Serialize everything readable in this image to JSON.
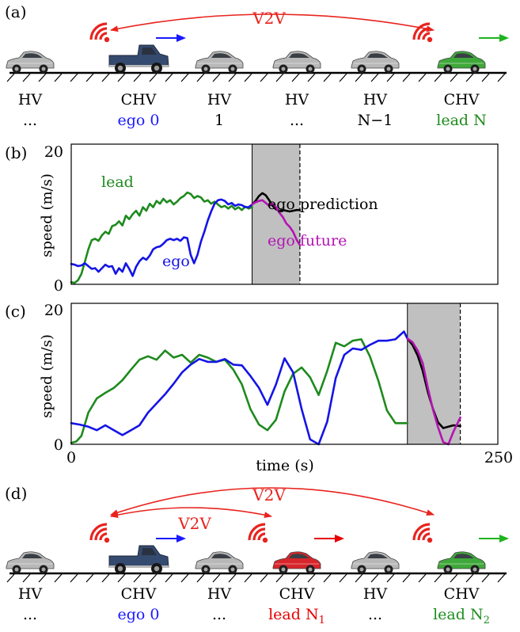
{
  "panel_a": {
    "tag": "(a)",
    "v2v": "V2V",
    "vehicles": [
      {
        "type": "HV",
        "id": "...",
        "type_color": "#000000",
        "id_color": "#000000",
        "kind": "sedan",
        "body": "#b8b8b8",
        "arrow": ""
      },
      {
        "type": "CHV",
        "id": "ego 0",
        "type_color": "#000000",
        "id_color": "#1a1aff",
        "kind": "pickup",
        "body": "#344a6e",
        "arrow": "#1a1aff"
      },
      {
        "type": "HV",
        "id": "1",
        "type_color": "#000000",
        "id_color": "#000000",
        "kind": "sedan",
        "body": "#b8b8b8",
        "arrow": ""
      },
      {
        "type": "HV",
        "id": "...",
        "type_color": "#000000",
        "id_color": "#000000",
        "kind": "sedan",
        "body": "#b8b8b8",
        "arrow": ""
      },
      {
        "type": "HV",
        "id": "N−1",
        "type_color": "#000000",
        "id_color": "#000000",
        "kind": "sedan",
        "body": "#b8b8b8",
        "arrow": ""
      },
      {
        "type": "CHV",
        "id": "lead N",
        "type_color": "#000000",
        "id_color": "#1e8c1e",
        "kind": "sedan",
        "body": "#3fa83a",
        "arrow": "#1eb41e"
      }
    ]
  },
  "panel_d": {
    "tag": "(d)",
    "v2v_outer": "V2V",
    "v2v_inner": "V2V",
    "vehicles": [
      {
        "type": "HV",
        "id": "...",
        "sub": "",
        "type_color": "#000000",
        "id_color": "#000000",
        "kind": "sedan",
        "body": "#b8b8b8",
        "arrow": ""
      },
      {
        "type": "CHV",
        "id": "ego 0",
        "sub": "",
        "type_color": "#000000",
        "id_color": "#1a1aff",
        "kind": "pickup",
        "body": "#344a6e",
        "arrow": "#1a1aff"
      },
      {
        "type": "HV",
        "id": "...",
        "sub": "",
        "type_color": "#000000",
        "id_color": "#000000",
        "kind": "sedan",
        "body": "#b8b8b8",
        "arrow": ""
      },
      {
        "type": "CHV",
        "id": "lead N",
        "sub": "1",
        "type_color": "#000000",
        "id_color": "#e60000",
        "kind": "sedan",
        "body": "#d7262b",
        "arrow": "#e60000"
      },
      {
        "type": "HV",
        "id": "...",
        "sub": "",
        "type_color": "#000000",
        "id_color": "#000000",
        "kind": "sedan",
        "body": "#b8b8b8",
        "arrow": ""
      },
      {
        "type": "CHV",
        "id": "lead N",
        "sub": "2",
        "type_color": "#000000",
        "id_color": "#1e8c1e",
        "kind": "sedan",
        "body": "#3fa83a",
        "arrow": "#1eb41e"
      }
    ]
  },
  "colors": {
    "v2v": "#e8231e",
    "ego": "#1414e6",
    "lead": "#1e8a1e",
    "prediction": "#000000",
    "future": "#b414b4",
    "window": "#c0c0c0"
  },
  "chart_data": [
    {
      "panel": "(b)",
      "type": "line",
      "ylabel": "speed (m/s)",
      "xlim": [
        0,
        125
      ],
      "ylim": [
        0,
        20
      ],
      "y_ticks": [
        "0",
        "20"
      ],
      "shaded_window": [
        53,
        67
      ],
      "annotations": {
        "lead": "lead",
        "ego": "ego",
        "prediction": "ego prediction",
        "future": "ego future"
      },
      "series": [
        {
          "name": "lead",
          "key": "lead",
          "x": [
            0,
            1,
            2,
            3,
            4,
            5,
            6,
            7,
            8,
            9,
            10,
            11,
            12,
            13,
            14,
            15,
            16,
            17,
            18,
            19,
            20,
            21,
            22,
            23,
            24,
            25,
            26,
            27,
            28,
            29,
            30,
            31,
            32,
            33,
            34,
            35,
            36,
            37,
            38,
            39,
            40,
            41,
            42,
            43,
            44,
            45,
            46,
            47,
            48,
            49,
            50,
            51,
            52,
            53
          ],
          "y": [
            0.3,
            0.2,
            0.6,
            1.5,
            3.2,
            5.0,
            6.3,
            6.5,
            6.2,
            7.0,
            7.5,
            7.2,
            8.3,
            8.5,
            9.0,
            8.4,
            9.8,
            9.3,
            10.0,
            10.5,
            9.8,
            11.0,
            10.5,
            11.5,
            11.0,
            11.9,
            11.5,
            12.2,
            11.7,
            12.0,
            11.4,
            11.8,
            12.3,
            12.6,
            13.1,
            12.9,
            12.3,
            12.6,
            12.4,
            11.8,
            12.0,
            11.5,
            11.8,
            11.4,
            11.0,
            11.2,
            10.8,
            11.2,
            10.7,
            11.0,
            10.6,
            11.1,
            10.8,
            11.0
          ]
        },
        {
          "name": "ego",
          "key": "ego",
          "x": [
            0,
            1,
            2,
            3,
            4,
            5,
            6,
            7,
            8,
            9,
            10,
            11,
            12,
            13,
            14,
            15,
            16,
            17,
            18,
            19,
            20,
            21,
            22,
            23,
            24,
            25,
            26,
            27,
            28,
            29,
            30,
            31,
            32,
            33,
            34,
            35,
            36,
            37,
            38,
            39,
            40,
            41,
            42,
            43,
            44,
            45,
            46,
            47,
            48,
            49,
            50,
            51,
            52,
            53
          ],
          "y": [
            2.9,
            2.8,
            2.6,
            2.7,
            3.0,
            2.6,
            2.2,
            2.3,
            1.8,
            2.3,
            2.8,
            2.5,
            2.6,
            1.5,
            2.3,
            1.8,
            3.0,
            2.2,
            1.2,
            2.5,
            3.3,
            3.8,
            3.5,
            4.1,
            5.0,
            5.3,
            5.4,
            5.8,
            6.3,
            6.5,
            6.3,
            6.5,
            6.2,
            6.7,
            6.6,
            4.2,
            3.0,
            4.2,
            6.1,
            7.5,
            9.1,
            10.4,
            11.5,
            12.0,
            12.1,
            11.9,
            11.4,
            11.6,
            11.2,
            11.4,
            11.3,
            11.0,
            11.0,
            11.4
          ]
        },
        {
          "name": "ego prediction",
          "key": "prediction",
          "x": [
            53,
            54,
            55,
            56,
            57,
            58,
            59,
            60,
            61,
            62,
            63,
            64,
            65,
            66,
            67
          ],
          "y": [
            11.4,
            11.9,
            12.6,
            13.0,
            12.7,
            12.0,
            11.2,
            10.7,
            10.5,
            10.6,
            10.5,
            10.4,
            10.5,
            10.6,
            10.6
          ]
        },
        {
          "name": "ego future",
          "key": "future",
          "x": [
            53,
            54,
            55,
            56,
            57,
            58,
            59,
            60,
            61,
            62,
            63,
            64,
            65,
            66,
            67
          ],
          "y": [
            11.4,
            11.7,
            11.9,
            12.0,
            11.6,
            11.2,
            11.5,
            11.0,
            10.2,
            9.6,
            8.7,
            8.2,
            7.5,
            6.4,
            5.6
          ]
        }
      ]
    },
    {
      "panel": "(c)",
      "type": "line",
      "xlabel": "time (s)",
      "ylabel": "speed (m/s)",
      "xlim": [
        0,
        250
      ],
      "ylim": [
        0,
        20
      ],
      "x_ticks": [
        "0",
        "250"
      ],
      "y_ticks": [
        "0",
        "20"
      ],
      "shaded_window": [
        197,
        228
      ],
      "series": [
        {
          "name": "lead",
          "key": "lead",
          "x": [
            0,
            3,
            6,
            10,
            15,
            20,
            25,
            30,
            35,
            40,
            45,
            50,
            55,
            60,
            65,
            70,
            75,
            80,
            85,
            90,
            95,
            100,
            105,
            110,
            115,
            120,
            125,
            130,
            135,
            140,
            145,
            150,
            155,
            160,
            165,
            170,
            175,
            180,
            185,
            190,
            197
          ],
          "y": [
            0.2,
            0.4,
            1.2,
            4.5,
            6.5,
            7.3,
            8.0,
            9.1,
            10.6,
            12.0,
            12.5,
            12.0,
            13.3,
            12.3,
            12.7,
            11.6,
            12.7,
            12.3,
            11.7,
            12.0,
            10.6,
            8.5,
            5.0,
            2.8,
            2.0,
            3.5,
            7.5,
            10.0,
            10.9,
            9.5,
            7.0,
            10.4,
            14.4,
            13.9,
            14.7,
            14.9,
            12.5,
            9.0,
            4.8,
            3.0,
            3.0
          ]
        },
        {
          "name": "ego",
          "key": "ego",
          "x": [
            0,
            5,
            10,
            15,
            20,
            25,
            30,
            35,
            40,
            45,
            50,
            55,
            60,
            65,
            70,
            75,
            80,
            85,
            90,
            95,
            100,
            105,
            110,
            115,
            120,
            125,
            130,
            135,
            140,
            145,
            150,
            155,
            160,
            165,
            170,
            175,
            180,
            185,
            190,
            195,
            197
          ],
          "y": [
            3.0,
            2.8,
            2.5,
            2.0,
            2.7,
            2.0,
            1.3,
            2.0,
            2.7,
            4.5,
            5.8,
            7.1,
            8.6,
            10.2,
            11.3,
            12.1,
            11.7,
            11.7,
            12.1,
            11.3,
            11.2,
            9.7,
            8.0,
            5.6,
            8.5,
            12.2,
            10.2,
            5.0,
            0.7,
            0.0,
            3.2,
            9.4,
            12.7,
            13.6,
            13.4,
            14.1,
            14.7,
            14.7,
            14.9,
            16.0,
            15.0
          ]
        },
        {
          "name": "ego prediction",
          "key": "prediction",
          "x": [
            197,
            200,
            203,
            206,
            209,
            212,
            215,
            218,
            221,
            224,
            228
          ],
          "y": [
            15.0,
            14.1,
            12.6,
            10.4,
            7.4,
            5.0,
            3.1,
            2.3,
            2.5,
            2.7,
            2.6
          ]
        },
        {
          "name": "ego future",
          "key": "future",
          "x": [
            197,
            200,
            203,
            206,
            209,
            212,
            215,
            218,
            221,
            224,
            228
          ],
          "y": [
            15.0,
            14.5,
            13.3,
            11.5,
            8.0,
            4.9,
            2.4,
            0.3,
            0.0,
            1.8,
            3.8
          ]
        }
      ]
    }
  ]
}
